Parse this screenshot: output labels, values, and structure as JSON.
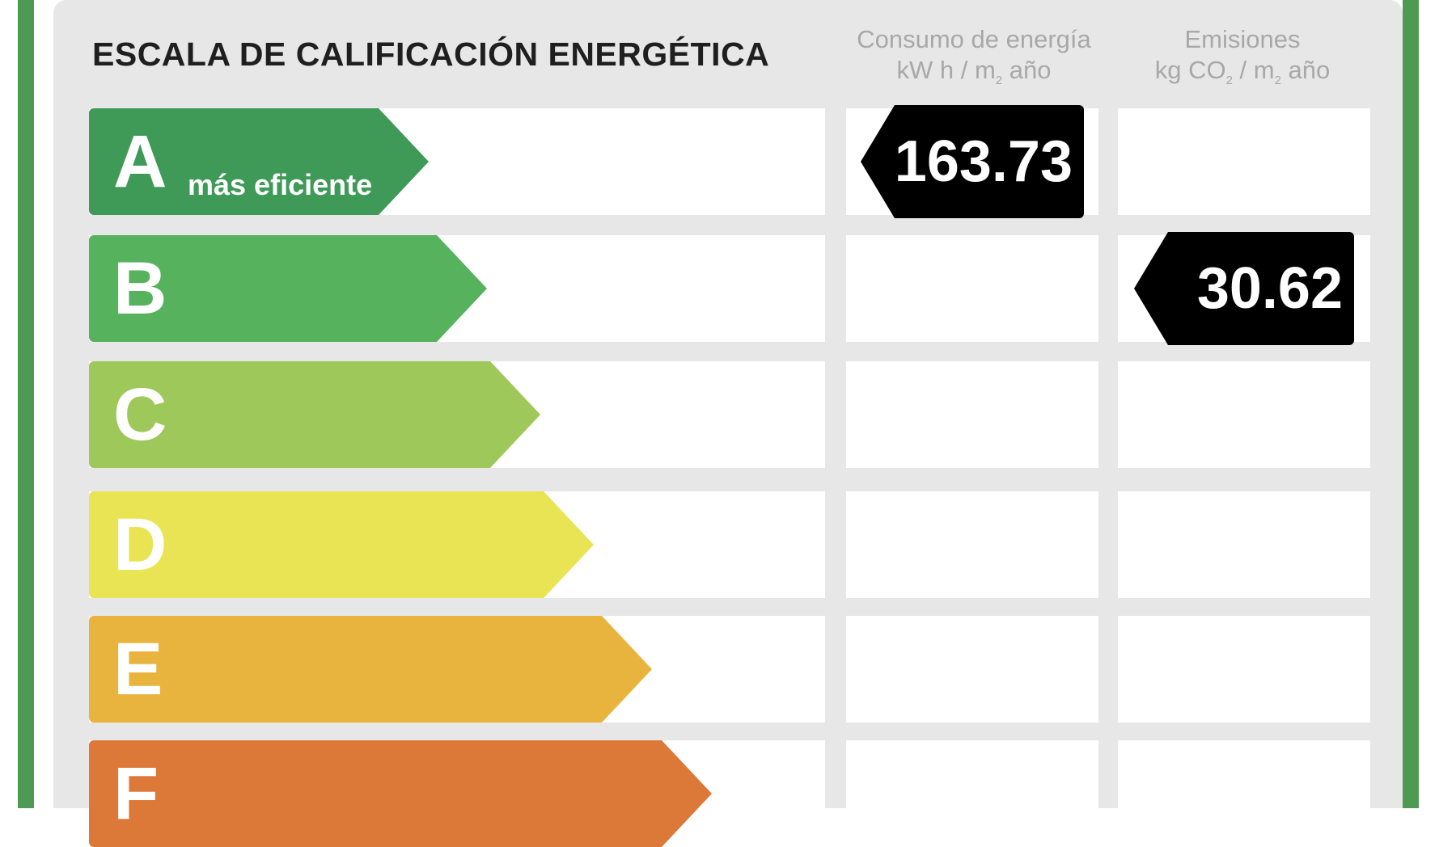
{
  "title": "ESCALA DE CALIFICACIÓN ENERGÉTICA",
  "columns": {
    "energy": {
      "line1": "Consumo de energía",
      "line2_pre": "kW h / m",
      "line2_sub": "2",
      "line2_post": " año"
    },
    "emissions": {
      "line1": "Emisiones",
      "line2_pre": "kg CO",
      "line2_sub": "2",
      "line2_mid": " / m",
      "line2_sub2": "2",
      "line2_post": " año"
    }
  },
  "ratings": [
    {
      "letter": "A",
      "sublabel": "más eficiente",
      "color": "#3f9a57"
    },
    {
      "letter": "B",
      "sublabel": "",
      "color": "#56b25c"
    },
    {
      "letter": "C",
      "sublabel": "",
      "color": "#9fc85a"
    },
    {
      "letter": "D",
      "sublabel": "",
      "color": "#e9e453"
    },
    {
      "letter": "E",
      "sublabel": "",
      "color": "#e9b43e"
    },
    {
      "letter": "F",
      "sublabel": "",
      "color": "#dc7838"
    }
  ],
  "energy_value": {
    "value": "163.73",
    "rating": "A"
  },
  "emissions_value": {
    "value": "30.62",
    "rating": "B"
  }
}
